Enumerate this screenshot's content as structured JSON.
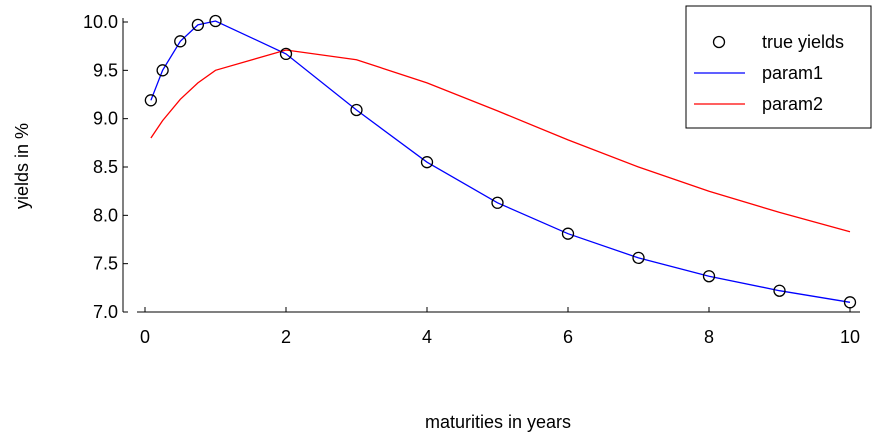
{
  "chart_data": {
    "type": "line",
    "title": "",
    "xlabel": "maturities in years",
    "ylabel": "yields in %",
    "xlim": [
      -0.3,
      10.25
    ],
    "ylim": [
      7.0,
      10.05
    ],
    "xticks": [
      0,
      2,
      4,
      6,
      8,
      10
    ],
    "xtick_labels": [
      "0",
      "2",
      "4",
      "6",
      "8",
      "10"
    ],
    "yticks": [
      7.0,
      7.5,
      8.0,
      8.5,
      9.0,
      9.5,
      10.0
    ],
    "ytick_labels": [
      "7.0",
      "7.5",
      "8.0",
      "8.5",
      "9.0",
      "9.5",
      "10.0"
    ],
    "grid": false,
    "legend_position": "top-right",
    "series": [
      {
        "name": "true yields",
        "style": "markers",
        "marker": "circle",
        "color": "#000000",
        "x": [
          0.083,
          0.25,
          0.5,
          0.75,
          1,
          2,
          3,
          4,
          5,
          6,
          7,
          8,
          9,
          10
        ],
        "y": [
          9.19,
          9.5,
          9.8,
          9.97,
          10.01,
          9.67,
          9.09,
          8.55,
          8.13,
          7.81,
          7.56,
          7.37,
          7.22,
          7.1
        ]
      },
      {
        "name": "param1",
        "style": "line",
        "color": "#0000ff",
        "x": [
          0.083,
          0.25,
          0.5,
          0.75,
          1,
          2,
          3,
          4,
          5,
          6,
          7,
          8,
          9,
          10
        ],
        "y": [
          9.19,
          9.5,
          9.8,
          9.97,
          10.01,
          9.67,
          9.09,
          8.55,
          8.13,
          7.81,
          7.56,
          7.37,
          7.22,
          7.1
        ]
      },
      {
        "name": "param2",
        "style": "line",
        "color": "#ff0000",
        "x": [
          0.083,
          0.25,
          0.5,
          0.75,
          1,
          2,
          3,
          4,
          5,
          6,
          7,
          8,
          9,
          10
        ],
        "y": [
          8.8,
          8.98,
          9.2,
          9.37,
          9.5,
          9.71,
          9.61,
          9.37,
          9.08,
          8.78,
          8.5,
          8.25,
          8.03,
          7.83
        ]
      }
    ]
  }
}
